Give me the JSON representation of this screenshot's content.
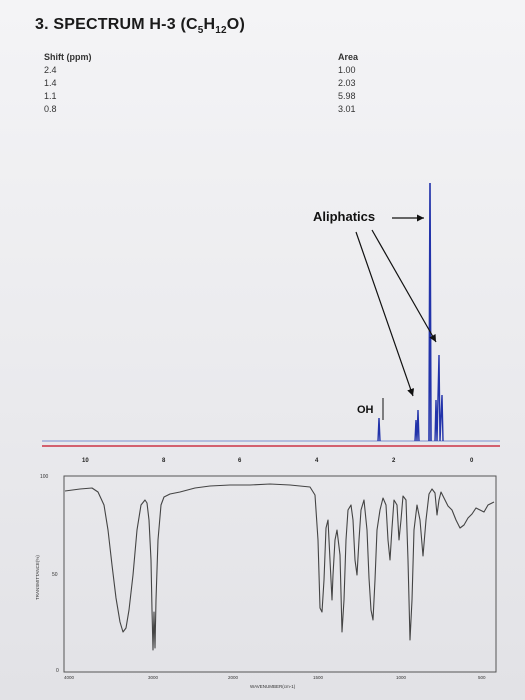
{
  "title": {
    "prefix": "3. SPECTRUM H-3 (C",
    "sub1": "5",
    "mid": "H",
    "sub2": "12",
    "suffix": "O)"
  },
  "shift_table": {
    "header": "Shift (ppm)",
    "values": [
      "2.4",
      "1.4",
      "1.1",
      "0.8"
    ]
  },
  "area_table": {
    "header": "Area",
    "values": [
      "1.00",
      "2.03",
      "5.98",
      "3.01"
    ]
  },
  "nmr": {
    "annotation_aliphatics": "Aliphatics",
    "annotation_oh": "OH",
    "x_ticks": [
      "10",
      "8",
      "6",
      "4",
      "2",
      "0"
    ]
  },
  "ir": {
    "y_label": "TRANSMITTANCE(%)",
    "y_ticks": [
      "100",
      "50",
      "0"
    ],
    "x_ticks": [
      "4000",
      "3000",
      "2000",
      "1500",
      "1000",
      "500"
    ],
    "x_label": "WAVENUMBER(cm-1)"
  },
  "colors": {
    "nmr_line": "#2233aa",
    "baseline_red": "#cc3344",
    "ir_line": "#444444"
  },
  "chart_data": [
    {
      "type": "line",
      "x": [
        2.4,
        1.4,
        1.1,
        0.8
      ],
      "x_values_ppm": [
        2.4,
        1.4,
        1.1,
        0.8
      ],
      "y_area": [
        1.0,
        2.03,
        5.98,
        3.01
      ],
      "xlim": [
        11,
        -0.5
      ],
      "x_ticks": [
        10,
        8,
        6,
        4,
        2,
        0
      ]
    },
    {
      "type": "line",
      "xlabel": "WAVENUMBER(cm-1)",
      "ylabel": "TRANSMITTANCE(%)",
      "xlim": [
        4000,
        400
      ],
      "ylim": [
        0,
        100
      ],
      "x": [
        4000,
        3650,
        3400,
        3300,
        3200,
        2960,
        2930,
        2870,
        2700,
        2300,
        1800,
        1600,
        1500,
        1470,
        1430,
        1385,
        1370,
        1300,
        1250,
        1200,
        1140,
        1100,
        1050,
        1000,
        980,
        950,
        900,
        850,
        800,
        700,
        600,
        500
      ],
      "y": [
        88,
        87,
        45,
        35,
        50,
        70,
        8,
        20,
        85,
        90,
        91,
        90,
        82,
        30,
        55,
        45,
        25,
        70,
        55,
        75,
        40,
        60,
        15,
        45,
        10,
        55,
        75,
        80,
        75,
        62,
        70,
        75
      ]
    }
  ]
}
